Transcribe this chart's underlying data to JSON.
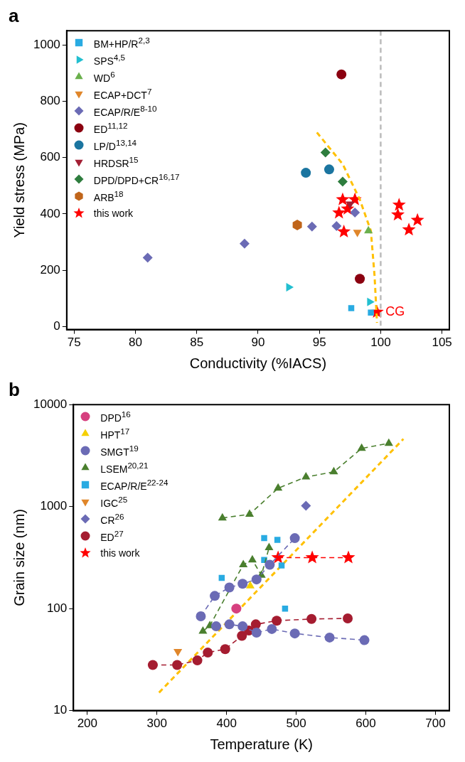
{
  "chart_data": [
    {
      "type": "scatter",
      "title": "a",
      "xlabel": "Conductivity (%IACS)",
      "ylabel": "Yield stress (MPa)",
      "xlim": [
        74.4,
        105.6
      ],
      "xticks": [
        75,
        80,
        85,
        90,
        95,
        100,
        105
      ],
      "ylim": [
        -10,
        1050
      ],
      "yticks": [
        0,
        200,
        400,
        600,
        800,
        1000
      ],
      "grid": false,
      "legend": "top left",
      "annotations": [
        {
          "text": "CG",
          "x": 99.7,
          "y": 52
        }
      ],
      "ref_lines": [
        {
          "axis": "x",
          "value": 100,
          "label": null,
          "color": "#bbbbbb",
          "line_style": "dashed"
        }
      ],
      "series": [
        {
          "name": "BM+HP/R$^{2,3}$",
          "color": "#29abe2",
          "marker": "square",
          "x": [
            97.6,
            99.2
          ],
          "values": [
            66,
            50
          ]
        },
        {
          "name": "SPS$^{4,5}$",
          "color": "#22bfd0",
          "marker": "triangle-right",
          "x": [
            92.5,
            99.1
          ],
          "values": [
            140,
            88
          ]
        },
        {
          "name": "WD$^{6}$",
          "color": "#6ab04c",
          "marker": "triangle",
          "x": [
            99.0
          ],
          "values": [
            340
          ]
        },
        {
          "name": "ECAP+DCT$^{7}$",
          "color": "#e0862a",
          "marker": "triangle-down",
          "x": [
            98.1
          ],
          "values": [
            335
          ]
        },
        {
          "name": "ECAP/R/E$^{8-10}$",
          "color": "#6b6bb5",
          "marker": "diamond",
          "x": [
            81.0,
            88.9,
            94.4,
            96.4,
            97.9
          ],
          "values": [
            245,
            295,
            355,
            357,
            405
          ]
        },
        {
          "name": "ED$^{11,12}$",
          "color": "#8b0010",
          "marker": "circle",
          "x": [
            96.8,
            98.3
          ],
          "values": [
            895,
            170
          ]
        },
        {
          "name": "LP/D$^{13,14}$",
          "color": "#1b75a0",
          "marker": "circle",
          "x": [
            93.9,
            95.8
          ],
          "values": [
            546,
            558
          ]
        },
        {
          "name": "HRDSR$^{15}$",
          "color": "#a31f34",
          "marker": "triangle-down",
          "x": [
            97.5
          ],
          "values": [
            435
          ]
        },
        {
          "name": "DPD/DPD+CR$^{16,17}$",
          "color": "#2e7d3e",
          "marker": "diamond",
          "x": [
            95.5,
            96.9
          ],
          "values": [
            618,
            515
          ]
        },
        {
          "name": "ARB$^{18}$",
          "color": "#c0651a",
          "x": [
            93.2
          ],
          "values": [
            361
          ]
        },
        {
          "name": "this work",
          "color": "#ff0000",
          "marker": "star",
          "x": [
            96.9,
            97.9,
            96.6,
            97.3,
            97.0,
            101.5,
            101.4,
            103.0,
            102.3,
            99.7
          ],
          "values": [
            451,
            451,
            404,
            418,
            337,
            432,
            397,
            378,
            344,
            52
          ]
        },
        {
          "type": "line",
          "color": "#ffc000",
          "marker": "none",
          "line_style": "dashed",
          "x": [
            94.8,
            96.9,
            98.3,
            99.2,
            99.5,
            99.7
          ],
          "values": [
            689,
            577,
            451,
            340,
            181,
            14
          ]
        }
      ]
    },
    {
      "type": "scatter",
      "title": "b",
      "xlabel": "Temperature (K)",
      "ylabel": "Grain size (nm)",
      "log": "y",
      "xlim": [
        180,
        720
      ],
      "xticks": [
        200,
        300,
        400,
        500,
        600,
        700
      ],
      "ylim": [
        10,
        10000
      ],
      "yticks": [
        10,
        100,
        1000,
        10000
      ],
      "grid": false,
      "legend": "top left",
      "series": [
        {
          "name": "DPD$^{16}$",
          "color": "#d6407f",
          "marker": "circle",
          "x": [
            414
          ],
          "values": [
            100
          ]
        },
        {
          "name": "HPT$^{17}$",
          "color": "#f5d000",
          "marker": "triangle",
          "x": [
            434
          ],
          "values": [
            167
          ]
        },
        {
          "name": "SMGT$^{19}$",
          "type": "line",
          "line_style": "dashed",
          "color": "#6b6bb5",
          "marker": "circle",
          "x": [
            363,
            383,
            404,
            423,
            443,
            462,
            498
          ],
          "values": [
            84,
            133,
            161,
            175,
            193,
            269,
            490
          ]
        },
        {
          "type": "line",
          "line_style": "dashed",
          "color": "#6b6bb5",
          "marker": "circle",
          "x": [
            385,
            404,
            423,
            443,
            465,
            498,
            548,
            598
          ],
          "values": [
            67,
            70,
            67,
            58,
            63,
            57,
            52,
            49
          ]
        },
        {
          "name": "LSEM$^{20,21}$",
          "type": "line",
          "line_style": "dashed",
          "color": "#4a7f2e",
          "marker": "triangle",
          "x": [
            394,
            433,
            474,
            514,
            554,
            594,
            633
          ],
          "values": [
            774,
            840,
            1514,
            1950,
            2190,
            3720,
            4170
          ]
        },
        {
          "type": "line",
          "line_style": "dashed",
          "color": "#4a7f2e",
          "marker": "triangle",
          "x": [
            366,
            376,
            424,
            437,
            450,
            461
          ],
          "values": [
            60,
            68,
            269,
            300,
            212,
            395
          ]
        },
        {
          "name": "ECAP/R/E$^{22-24}$",
          "color": "#29abe2",
          "marker": "square",
          "x": [
            393,
            454,
            473,
            454,
            479,
            484
          ],
          "values": [
            200,
            490,
            472,
            300,
            265,
            100
          ]
        },
        {
          "name": "IGC$^{25}$",
          "color": "#e0862a",
          "marker": "triangle-down",
          "x": [
            330
          ],
          "values": [
            38
          ]
        },
        {
          "name": "CR$^{26}$",
          "color": "#6b6bb5",
          "marker": "diamond",
          "x": [
            514
          ],
          "values": [
            1017
          ]
        },
        {
          "name": "ED$^{27}$",
          "type": "line",
          "line_style": "dashed",
          "color": "#a51c30",
          "marker": "circle",
          "x": [
            294,
            329,
            358,
            373,
            398,
            422,
            432,
            442,
            472,
            522,
            574
          ],
          "values": [
            28,
            28,
            31,
            37,
            40,
            54,
            61,
            70,
            76,
            79,
            80
          ]
        },
        {
          "name": "this work",
          "type": "line",
          "line_style": "dashed",
          "color": "#ff0000",
          "marker": "star",
          "x": [
            474,
            523,
            575
          ],
          "values": [
            316,
            316,
            316
          ]
        },
        {
          "type": "line",
          "color": "#ffc000",
          "marker": "none",
          "line_style": "dashed",
          "x": [
            303,
            654
          ],
          "values": [
            15,
            4600
          ]
        }
      ]
    }
  ]
}
